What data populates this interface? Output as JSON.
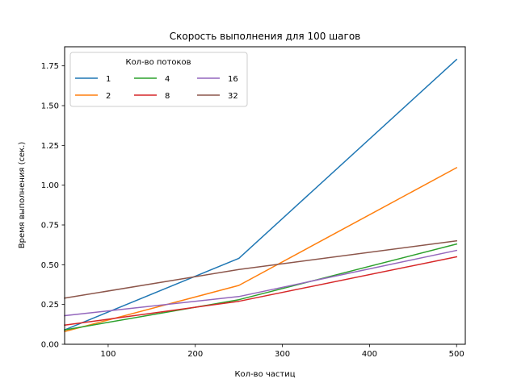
{
  "chart_data": {
    "type": "line",
    "title": "Скорость выполнения для 100 шагов",
    "xlabel": "Кол-во частиц",
    "ylabel": "Время выполнения (сек.)",
    "x": [
      50,
      250,
      500
    ],
    "xlim": [
      50,
      510
    ],
    "ylim": [
      0,
      1.87
    ],
    "xticks": [
      100,
      200,
      300,
      400,
      500
    ],
    "xtick_labels": [
      "100",
      "200",
      "300",
      "400",
      "500"
    ],
    "yticks": [
      0.0,
      0.25,
      0.5,
      0.75,
      1.0,
      1.25,
      1.5,
      1.75
    ],
    "ytick_labels": [
      "0.00",
      "0.25",
      "0.50",
      "0.75",
      "1.00",
      "1.25",
      "1.50",
      "1.75"
    ],
    "grid": false,
    "legend": {
      "title": "Кол-во потоков",
      "placement": "top-left",
      "columns": 3
    },
    "series": [
      {
        "name": "1",
        "color": "#1f77b4",
        "values": [
          0.09,
          0.54,
          1.79
        ]
      },
      {
        "name": "2",
        "color": "#ff7f0e",
        "values": [
          0.08,
          0.37,
          1.11
        ]
      },
      {
        "name": "4",
        "color": "#2ca02c",
        "values": [
          0.09,
          0.28,
          0.63
        ]
      },
      {
        "name": "8",
        "color": "#d62728",
        "values": [
          0.12,
          0.27,
          0.55
        ]
      },
      {
        "name": "16",
        "color": "#9467bd",
        "values": [
          0.18,
          0.3,
          0.59
        ]
      },
      {
        "name": "32",
        "color": "#8c564b",
        "values": [
          0.29,
          0.47,
          0.65
        ]
      }
    ]
  }
}
